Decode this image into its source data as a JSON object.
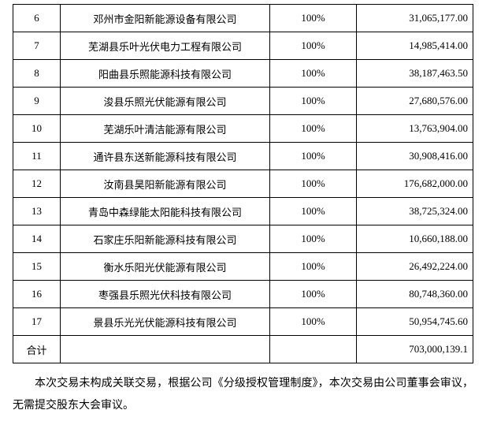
{
  "table": {
    "rows": [
      {
        "no": "6",
        "name": "邓州市金阳新能源设备有限公司",
        "pct": "100%",
        "amount": "31,065,177.00"
      },
      {
        "no": "7",
        "name": "芜湖县乐叶光伏电力工程有限公司",
        "pct": "100%",
        "amount": "14,985,414.00"
      },
      {
        "no": "8",
        "name": "阳曲县乐照能源科技有限公司",
        "pct": "100%",
        "amount": "38,187,463.50"
      },
      {
        "no": "9",
        "name": "浚县乐照光伏能源有限公司",
        "pct": "100%",
        "amount": "27,680,576.00"
      },
      {
        "no": "10",
        "name": "芜湖乐叶清洁能源有限公司",
        "pct": "100%",
        "amount": "13,763,904.00"
      },
      {
        "no": "11",
        "name": "通许县东送新能源科技有限公司",
        "pct": "100%",
        "amount": "30,908,416.00"
      },
      {
        "no": "12",
        "name": "汝南县昊阳新能源有限公司",
        "pct": "100%",
        "amount": "176,682,000.00"
      },
      {
        "no": "13",
        "name": "青岛中森绿能太阳能科技有限公司",
        "pct": "100%",
        "amount": "38,725,324.00"
      },
      {
        "no": "14",
        "name": "石家庄乐阳新能源科技有限公司",
        "pct": "100%",
        "amount": "10,660,188.00"
      },
      {
        "no": "15",
        "name": "衡水乐阳光伏能源有限公司",
        "pct": "100%",
        "amount": "26,492,224.00"
      },
      {
        "no": "16",
        "name": "枣强县乐照光伏科技有限公司",
        "pct": "100%",
        "amount": "80,748,360.00"
      },
      {
        "no": "17",
        "name": "景县乐光光伏能源科技有限公司",
        "pct": "100%",
        "amount": "50,954,745.60"
      }
    ],
    "total_label": "合计",
    "total_amount": "703,000,139.1"
  },
  "paragraph": "本次交易未构成关联交易，根据公司《分级授权管理制度》，本次交易由公司董事会审议，无需提交股东大会审议。"
}
